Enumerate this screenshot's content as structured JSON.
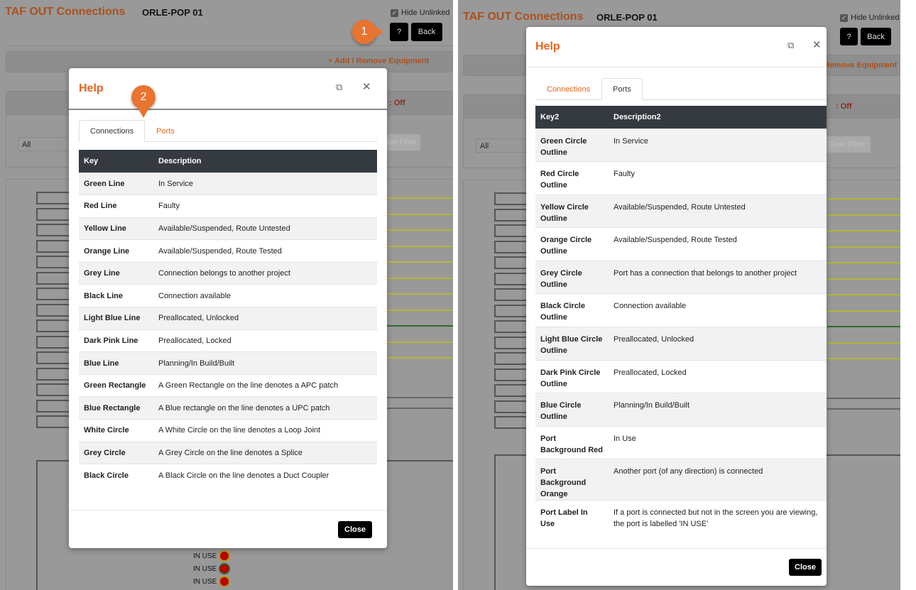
{
  "app": {
    "title": "TAF OUT Connections",
    "location": "ORLE-POP 01",
    "hide_unlinked_label": "Hide Unlinked",
    "hide_unlinked_checked": true,
    "help_button": "?",
    "back_button": "Back",
    "add_remove_equipment": "+ Add / Remove Equipment",
    "toggle_status": ": Off",
    "filter_select_value": "All",
    "clear_filter": "Clear Filter",
    "in_use_label": "IN USE"
  },
  "callouts": {
    "step1": "1",
    "step2": "2"
  },
  "colors": {
    "accent": "#e8641c",
    "table_header": "#343a40"
  },
  "help_modal": {
    "title": "Help",
    "expand_icon": "expand-icon",
    "close_icon": "close-x-icon",
    "tabs": [
      "Connections",
      "Ports"
    ],
    "close_button": "Close",
    "connections": {
      "headers": [
        "Key",
        "Description"
      ],
      "rows": [
        [
          "Green Line",
          "In Service"
        ],
        [
          "Red Line",
          "Faulty"
        ],
        [
          "Yellow Line",
          "Available/Suspended, Route Untested"
        ],
        [
          "Orange Line",
          "Available/Suspended, Route Tested"
        ],
        [
          "Grey Line",
          "Connection belongs to another project"
        ],
        [
          "Black Line",
          "Connection available"
        ],
        [
          "Light Blue Line",
          "Preallocated, Unlocked"
        ],
        [
          "Dark Pink Line",
          "Preallocated, Locked"
        ],
        [
          "Blue Line",
          "Planning/In Build/Built"
        ],
        [
          "Green Rectangle",
          "A Green Rectangle on the line denotes a APC patch"
        ],
        [
          "Blue Rectangle",
          "A Blue rectangle on the line denotes a UPC patch"
        ],
        [
          "White Circle",
          "A White Circle on the line denotes a Loop Joint"
        ],
        [
          "Grey Circle",
          "A Grey Circle on the line denotes a Splice"
        ],
        [
          "Black Circle",
          "A Black Circle on the line denotes a Duct Coupler"
        ]
      ]
    },
    "ports": {
      "headers": [
        "Key2",
        "Description2"
      ],
      "rows": [
        [
          "Green Circle Outline",
          "In Service"
        ],
        [
          "Red Circle Outline",
          "Faulty"
        ],
        [
          "Yellow Circle Outline",
          "Available/Suspended, Route Untested"
        ],
        [
          "Orange Circle Outline",
          "Available/Suspended, Route Tested"
        ],
        [
          "Grey Circle Outline",
          "Port has a connection that belongs to another project"
        ],
        [
          "Black Circle Outline",
          "Connection available"
        ],
        [
          "Light Blue Circle Outline",
          "Preallocated, Unlocked"
        ],
        [
          "Dark Pink Circle Outline",
          "Preallocated, Locked"
        ],
        [
          "Blue Circle Outline",
          "Planning/In Build/Built"
        ],
        [
          "Port Background Red",
          "In Use"
        ],
        [
          "Port Background Orange",
          "Another port (of any direction) is connected"
        ],
        [
          "Port Label In Use",
          "If a port is connected but not in the screen you are viewing, the port is labelled 'IN USE'"
        ]
      ]
    }
  }
}
